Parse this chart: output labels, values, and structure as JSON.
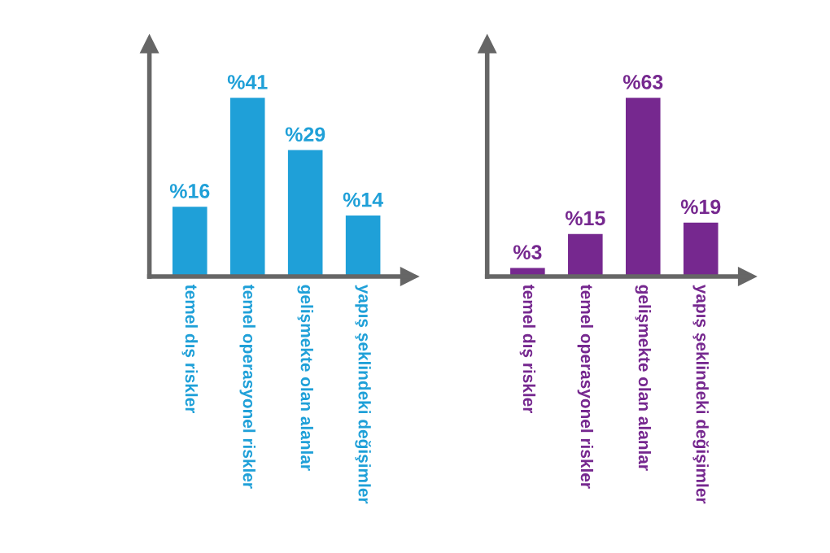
{
  "chart_data": [
    {
      "type": "bar",
      "categories": [
        "temel dış riskler",
        "temel operasyonel riskler",
        "gelişmekte olan alanlar",
        "yapış şeklindeki değişimler"
      ],
      "values": [
        16,
        41,
        29,
        14
      ],
      "value_labels": [
        "%16",
        "%41",
        "%29",
        "%14"
      ],
      "color": "#1fa0d8",
      "tick_labels": "x",
      "grid": false,
      "legend": false
    },
    {
      "type": "bar",
      "categories": [
        "temel dış riskler",
        "temel operasyonel riskler",
        "gelişmekte olan alanlar",
        "yapış şeklindeki değişimler"
      ],
      "values": [
        3,
        15,
        63,
        19
      ],
      "value_labels": [
        "%3",
        "%15",
        "%63",
        "%19"
      ],
      "color": "#76288f",
      "tick_labels": "x",
      "grid": false,
      "legend": false
    }
  ]
}
